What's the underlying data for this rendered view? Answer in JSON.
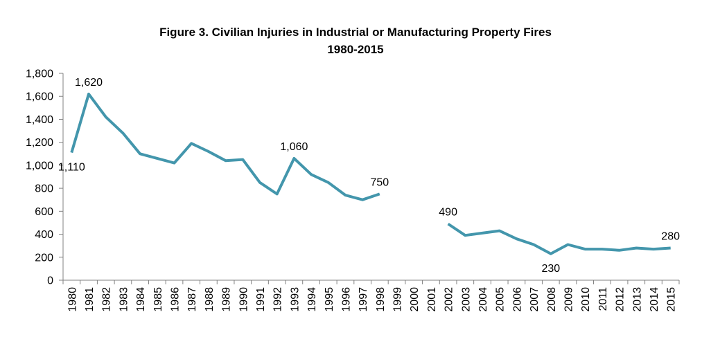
{
  "chart_data": {
    "type": "line",
    "title": "Figure 3. Civilian Injuries in Industrial or Manufacturing Property Fires",
    "subtitle": "1980-2015",
    "xlabel": "",
    "ylabel": "",
    "ylim": [
      0,
      1800
    ],
    "yticks": [
      "0",
      "200",
      "400",
      "600",
      "800",
      "1,000",
      "1,200",
      "1,400",
      "1,600",
      "1,800"
    ],
    "ytick_values": [
      0,
      200,
      400,
      600,
      800,
      1000,
      1200,
      1400,
      1600,
      1800
    ],
    "categories": [
      "1980",
      "1981",
      "1982",
      "1983",
      "1984",
      "1985",
      "1986",
      "1987",
      "1988",
      "1989",
      "1990",
      "1991",
      "1992",
      "1993",
      "1994",
      "1995",
      "1996",
      "1997",
      "1998",
      "1999",
      "2000",
      "2001",
      "2002",
      "2003",
      "2004",
      "2005",
      "2006",
      "2007",
      "2008",
      "2009",
      "2010",
      "2011",
      "2012",
      "2013",
      "2014",
      "2015"
    ],
    "series": [
      {
        "color": "#4396AC",
        "values": [
          1110,
          1620,
          1420,
          1280,
          1100,
          1060,
          1020,
          1190,
          1120,
          1040,
          1050,
          850,
          750,
          1060,
          920,
          850,
          740,
          700,
          750,
          null,
          null,
          null,
          490,
          390,
          410,
          430,
          360,
          310,
          230,
          310,
          270,
          270,
          260,
          280,
          270,
          280
        ]
      }
    ],
    "data_labels": [
      {
        "category": "1980",
        "text": "1,110",
        "position": "below"
      },
      {
        "category": "1981",
        "text": "1,620",
        "position": "above"
      },
      {
        "category": "1993",
        "text": "1,060",
        "position": "above"
      },
      {
        "category": "1998",
        "text": "750",
        "position": "above"
      },
      {
        "category": "2002",
        "text": "490",
        "position": "above"
      },
      {
        "category": "2008",
        "text": "230",
        "position": "below"
      },
      {
        "category": "2015",
        "text": "280",
        "position": "above"
      }
    ],
    "grid": false,
    "legend": "none"
  }
}
